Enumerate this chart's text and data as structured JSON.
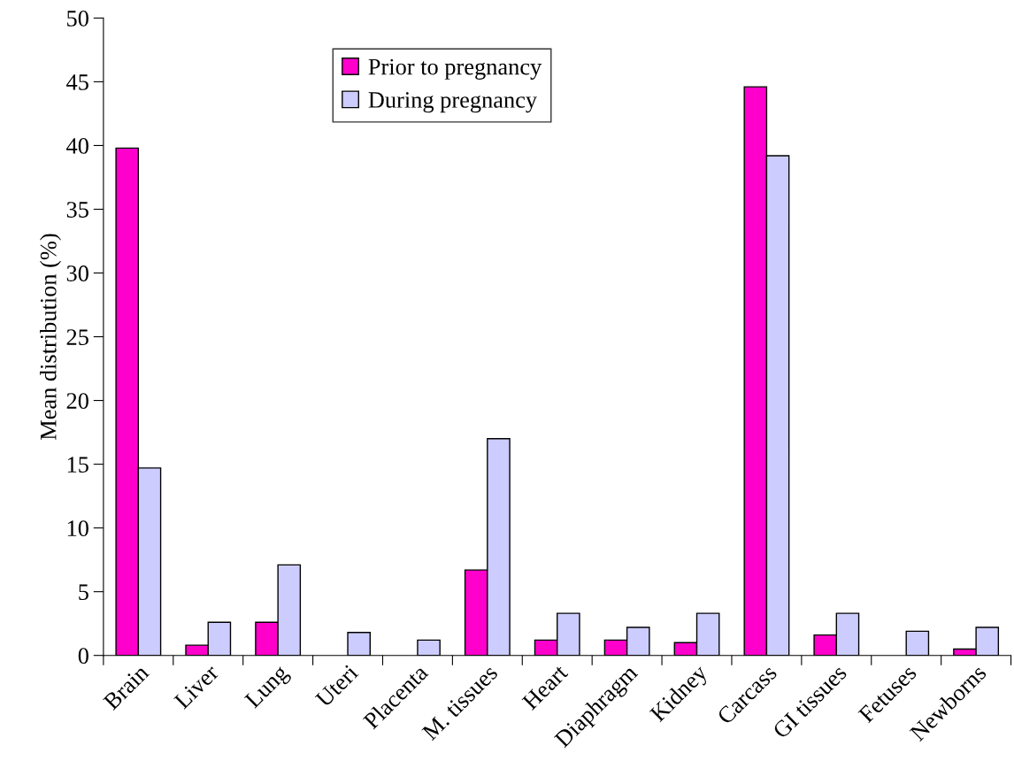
{
  "chart_data": {
    "type": "bar",
    "ylabel": "Mean distribution (%)",
    "categories": [
      "Brain",
      "Liver",
      "Lung",
      "Uteri",
      "Placenta",
      "M. tissues",
      "Heart",
      "Diaphragm",
      "Kidney",
      "Carcass",
      "GI tissues",
      "Fetuses",
      "Newborns"
    ],
    "series": [
      {
        "name": "Prior to pregnancy",
        "color": "#ff00cc",
        "values": [
          39.8,
          0.8,
          2.6,
          null,
          null,
          6.7,
          1.2,
          1.2,
          1.0,
          44.6,
          1.6,
          null,
          0.5
        ]
      },
      {
        "name": "During pregnancy",
        "color": "#ccccff",
        "values": [
          14.7,
          2.6,
          7.1,
          1.8,
          1.2,
          17.0,
          3.3,
          2.2,
          3.3,
          39.2,
          3.3,
          1.9,
          2.2
        ]
      }
    ],
    "ylim": [
      0,
      50
    ],
    "yticks": [
      0,
      5,
      10,
      15,
      20,
      25,
      30,
      35,
      40,
      45,
      50
    ],
    "grid": false,
    "legend": "top"
  }
}
